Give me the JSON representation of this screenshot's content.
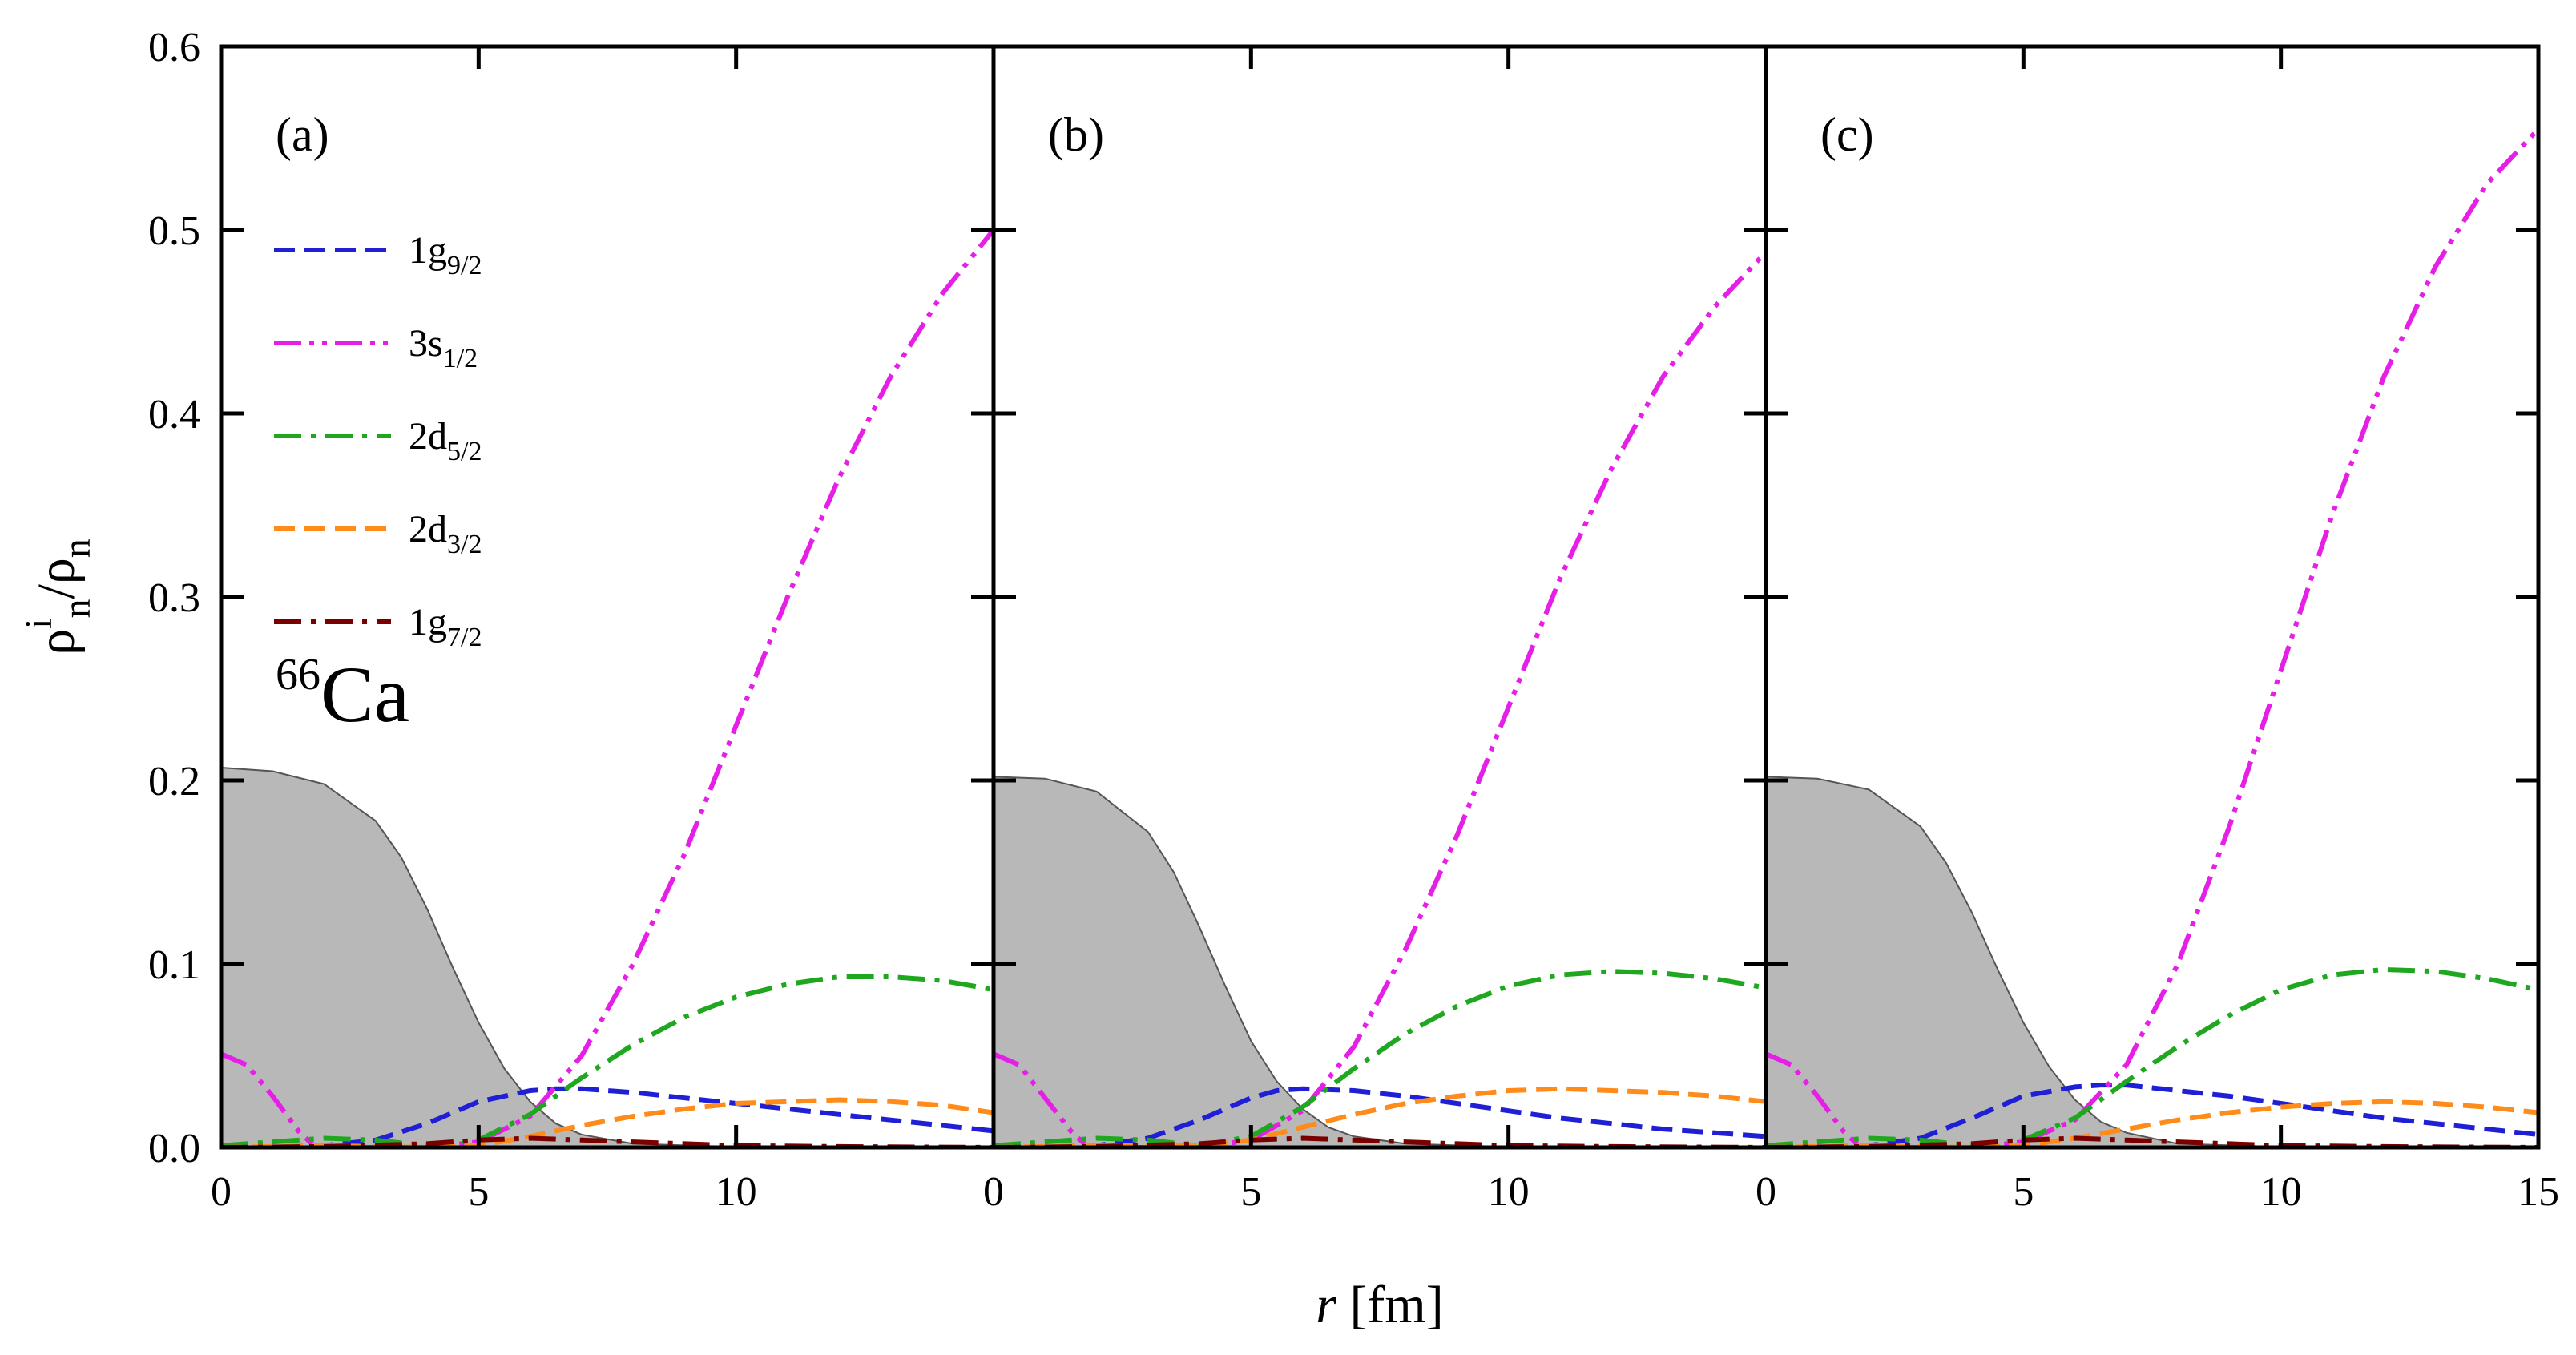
{
  "chart_data": {
    "type": "line",
    "ylabel": {
      "base": "ρ",
      "sup": "i",
      "sub": "n",
      "slash": "/",
      "base2": "ρ",
      "sub2": "n"
    },
    "xlabel": {
      "italic": "r",
      "rest": " [fm]"
    },
    "nucleus": {
      "mass": "66",
      "symbol": "Ca"
    },
    "xlim": [
      0,
      15
    ],
    "ylim": [
      0,
      0.6
    ],
    "x_ticks": [
      0,
      5,
      10,
      15
    ],
    "x_tick_labels": [
      "0",
      "5",
      "10",
      "15"
    ],
    "y_ticks": [
      0,
      0.1,
      0.2,
      0.3,
      0.4,
      0.5,
      0.6
    ],
    "y_tick_labels": [
      "0.0",
      "0.1",
      "0.2",
      "0.3",
      "0.4",
      "0.5",
      "0.6"
    ],
    "legend": [
      {
        "base": "1g",
        "sub": "9/2",
        "color": "#1f1fd6",
        "dash": "dash"
      },
      {
        "base": "3s",
        "sub": "1/2",
        "color": "#e61fe6",
        "dash": "dashdotdot"
      },
      {
        "base": "2d",
        "sub": "5/2",
        "color": "#1fa81f",
        "dash": "dashdot"
      },
      {
        "base": "2d",
        "sub": "3/2",
        "color": "#ff8c1a",
        "dash": "dash"
      },
      {
        "base": "1g",
        "sub": "7/2",
        "color": "#7a0000",
        "dash": "dashdot"
      }
    ],
    "density_fill_color": "#b8b8b8",
    "panels": [
      {
        "label": "(a)",
        "density": {
          "x": [
            0,
            1,
            2,
            3,
            3.5,
            4,
            4.5,
            5,
            5.5,
            6,
            6.5,
            7,
            8,
            10,
            15
          ],
          "y": [
            0.207,
            0.205,
            0.198,
            0.178,
            0.158,
            0.13,
            0.098,
            0.068,
            0.043,
            0.025,
            0.013,
            0.007,
            0.002,
            0.0003,
            0
          ]
        },
        "series": [
          {
            "name": "1g9/2",
            "x": [
              0,
              1,
              2,
              3,
              4,
              5,
              6,
              6.5,
              7,
              8,
              9,
              10,
              11,
              12,
              13,
              14,
              15
            ],
            "y": [
              0,
              0,
              0.001,
              0.004,
              0.013,
              0.025,
              0.031,
              0.032,
              0.032,
              0.03,
              0.027,
              0.024,
              0.021,
              0.018,
              0.015,
              0.012,
              0.009
            ]
          },
          {
            "name": "3s1/2",
            "x": [
              0,
              0.5,
              1,
              1.5,
              1.8,
              2.5,
              4,
              5,
              6,
              7,
              8,
              9,
              10,
              11,
              12,
              13,
              14,
              15
            ],
            "y": [
              0.051,
              0.045,
              0.028,
              0.009,
              0.001,
              0,
              0,
              0.003,
              0.017,
              0.05,
              0.1,
              0.16,
              0.23,
              0.3,
              0.365,
              0.42,
              0.465,
              0.5
            ]
          },
          {
            "name": "2d5/2",
            "x": [
              0,
              1,
              2,
              3,
              4,
              5,
              6,
              7,
              8,
              9,
              10,
              11,
              12,
              13,
              14,
              15
            ],
            "y": [
              0.001,
              0.003,
              0.005,
              0.004,
              0.001,
              0.004,
              0.018,
              0.038,
              0.056,
              0.071,
              0.082,
              0.089,
              0.093,
              0.093,
              0.091,
              0.086
            ]
          },
          {
            "name": "2d3/2",
            "x": [
              0,
              2,
              4,
              5,
              6,
              7,
              8,
              9,
              10,
              11,
              12,
              13,
              14,
              15
            ],
            "y": [
              0,
              0.001,
              0,
              0.001,
              0.006,
              0.012,
              0.017,
              0.021,
              0.024,
              0.025,
              0.026,
              0.025,
              0.023,
              0.019
            ]
          },
          {
            "name": "1g7/2",
            "x": [
              0,
              2,
              4,
              5,
              6,
              7,
              8,
              10,
              12,
              15
            ],
            "y": [
              0,
              0.0005,
              0.002,
              0.004,
              0.005,
              0.004,
              0.003,
              0.001,
              0.0005,
              0
            ]
          }
        ]
      },
      {
        "label": "(b)",
        "density": {
          "x": [
            0,
            1,
            2,
            3,
            3.5,
            4,
            4.5,
            5,
            5.5,
            6,
            6.5,
            7,
            8,
            10,
            15
          ],
          "y": [
            0.202,
            0.201,
            0.194,
            0.172,
            0.15,
            0.12,
            0.088,
            0.058,
            0.036,
            0.021,
            0.011,
            0.006,
            0.002,
            0.0003,
            0
          ]
        },
        "series": [
          {
            "name": "1g9/2",
            "x": [
              0,
              1,
              2,
              3,
              4,
              5,
              5.5,
              6,
              7,
              8,
              9,
              10,
              11,
              12,
              13,
              14,
              15
            ],
            "y": [
              0,
              0,
              0.001,
              0.005,
              0.015,
              0.027,
              0.031,
              0.032,
              0.031,
              0.028,
              0.024,
              0.02,
              0.016,
              0.013,
              0.01,
              0.008,
              0.006
            ]
          },
          {
            "name": "3s1/2",
            "x": [
              0,
              0.5,
              1,
              1.5,
              1.8,
              2.5,
              4,
              5,
              6,
              7,
              8,
              9,
              10,
              11,
              12,
              13,
              14,
              15
            ],
            "y": [
              0.051,
              0.045,
              0.027,
              0.009,
              0.001,
              0,
              0,
              0.004,
              0.02,
              0.055,
              0.108,
              0.17,
              0.24,
              0.31,
              0.37,
              0.42,
              0.458,
              0.488
            ]
          },
          {
            "name": "2d5/2",
            "x": [
              0,
              1,
              2,
              3,
              4,
              5,
              6,
              7,
              8,
              9,
              10,
              11,
              12,
              13,
              14,
              15
            ],
            "y": [
              0.001,
              0.003,
              0.005,
              0.004,
              0.001,
              0.006,
              0.022,
              0.043,
              0.062,
              0.077,
              0.088,
              0.094,
              0.096,
              0.095,
              0.092,
              0.087
            ]
          },
          {
            "name": "2d3/2",
            "x": [
              0,
              2,
              4,
              5,
              6,
              7,
              8,
              9,
              10,
              11,
              12,
              13,
              14,
              15
            ],
            "y": [
              0,
              0.001,
              0.001,
              0.004,
              0.011,
              0.018,
              0.024,
              0.028,
              0.031,
              0.032,
              0.031,
              0.03,
              0.028,
              0.025
            ]
          },
          {
            "name": "1g7/2",
            "x": [
              0,
              2,
              4,
              5,
              6,
              7,
              8,
              10,
              12,
              15
            ],
            "y": [
              0,
              0.0005,
              0.002,
              0.004,
              0.005,
              0.004,
              0.003,
              0.001,
              0.0005,
              0
            ]
          }
        ]
      },
      {
        "label": "(c)",
        "density": {
          "x": [
            0,
            1,
            2,
            3,
            3.5,
            4,
            4.5,
            5,
            5.5,
            6,
            6.5,
            7,
            8,
            10,
            15
          ],
          "y": [
            0.202,
            0.201,
            0.195,
            0.175,
            0.155,
            0.128,
            0.097,
            0.068,
            0.044,
            0.026,
            0.014,
            0.008,
            0.002,
            0.0003,
            0
          ]
        },
        "series": [
          {
            "name": "1g9/2",
            "x": [
              0,
              1,
              2,
              3,
              4,
              5,
              6,
              6.5,
              7,
              8,
              9,
              10,
              11,
              12,
              13,
              14,
              15
            ],
            "y": [
              0,
              0,
              0.001,
              0.005,
              0.016,
              0.028,
              0.033,
              0.034,
              0.034,
              0.031,
              0.028,
              0.024,
              0.02,
              0.016,
              0.013,
              0.01,
              0.007
            ]
          },
          {
            "name": "3s1/2",
            "x": [
              0,
              0.5,
              1,
              1.5,
              1.8,
              2.5,
              4,
              5,
              6,
              7,
              8,
              9,
              10,
              11,
              12,
              13,
              14,
              15
            ],
            "y": [
              0.051,
              0.045,
              0.028,
              0.009,
              0.001,
              0,
              0,
              0.003,
              0.015,
              0.045,
              0.1,
              0.175,
              0.26,
              0.345,
              0.42,
              0.48,
              0.525,
              0.555
            ]
          },
          {
            "name": "2d5/2",
            "x": [
              0,
              1,
              2,
              3,
              4,
              5,
              6,
              7,
              8,
              9,
              10,
              11,
              12,
              13,
              14,
              15
            ],
            "y": [
              0.001,
              0.003,
              0.005,
              0.004,
              0.001,
              0.004,
              0.016,
              0.036,
              0.055,
              0.072,
              0.086,
              0.094,
              0.097,
              0.096,
              0.092,
              0.086
            ]
          },
          {
            "name": "2d3/2",
            "x": [
              0,
              2,
              4,
              5,
              6,
              7,
              8,
              9,
              10,
              11,
              12,
              13,
              14,
              15
            ],
            "y": [
              0,
              0.001,
              0,
              0.001,
              0.005,
              0.01,
              0.015,
              0.019,
              0.022,
              0.024,
              0.025,
              0.024,
              0.022,
              0.019
            ]
          },
          {
            "name": "1g7/2",
            "x": [
              0,
              2,
              4,
              5,
              6,
              7,
              8,
              10,
              12,
              15
            ],
            "y": [
              0,
              0.0005,
              0.002,
              0.004,
              0.005,
              0.004,
              0.003,
              0.001,
              0.0005,
              0
            ]
          }
        ]
      }
    ]
  }
}
